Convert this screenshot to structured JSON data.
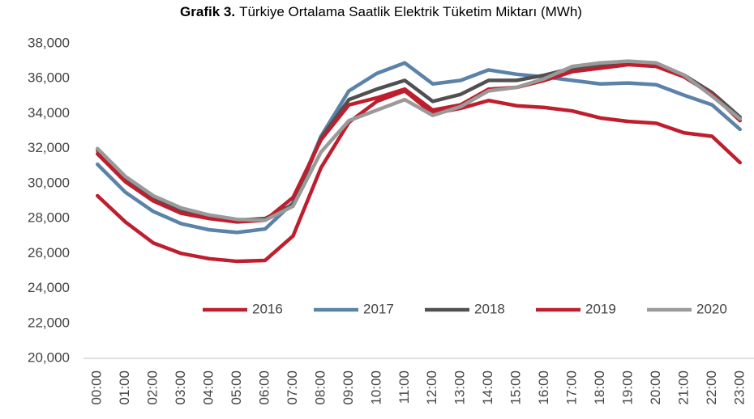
{
  "chart_data": {
    "type": "line",
    "title_bold": "Grafik 3.",
    "title": "Türkiye Ortalama Saatlik Elektrik Tüketim Miktarı (MWh)",
    "categories": [
      "00:00",
      "01:00",
      "02:00",
      "03:00",
      "04:00",
      "05:00",
      "06:00",
      "07:00",
      "08:00",
      "09:00",
      "10:00",
      "11:00",
      "12:00",
      "13:00",
      "14:00",
      "15:00",
      "16:00",
      "17:00",
      "18:00",
      "19:00",
      "20:00",
      "21:00",
      "22:00",
      "23:00"
    ],
    "series": [
      {
        "name": "2016",
        "color": "#be1e2d",
        "values": [
          29300,
          27800,
          26600,
          26000,
          25700,
          25550,
          25600,
          27000,
          30900,
          33500,
          34700,
          35300,
          34000,
          34300,
          34750,
          34450,
          34350,
          34150,
          33750,
          33550,
          33450,
          32900,
          32700,
          31200
        ]
      },
      {
        "name": "2017",
        "color": "#5b82a9",
        "values": [
          31100,
          29500,
          28400,
          27700,
          27350,
          27200,
          27400,
          28900,
          32700,
          35300,
          36300,
          36900,
          35700,
          35900,
          36500,
          36250,
          36100,
          35900,
          35700,
          35750,
          35650,
          35050,
          34500,
          33100
        ]
      },
      {
        "name": "2018",
        "color": "#505050",
        "values": [
          31900,
          30300,
          29200,
          28500,
          28150,
          27900,
          28000,
          28800,
          32600,
          34800,
          35400,
          35900,
          34700,
          35100,
          35900,
          35900,
          36200,
          36600,
          36800,
          36900,
          36800,
          36200,
          35200,
          33800
        ]
      },
      {
        "name": "2019",
        "color": "#be1e2d",
        "values": [
          31700,
          30100,
          29000,
          28300,
          28000,
          27800,
          27900,
          29200,
          32500,
          34500,
          34900,
          35400,
          34200,
          34500,
          35400,
          35500,
          35900,
          36400,
          36600,
          36800,
          36700,
          36100,
          35100,
          33600
        ]
      },
      {
        "name": "2020",
        "color": "#9a9a9a",
        "values": [
          32000,
          30400,
          29300,
          28600,
          28200,
          27950,
          27900,
          28700,
          31800,
          33600,
          34200,
          34800,
          33900,
          34400,
          35300,
          35500,
          36000,
          36700,
          36900,
          37000,
          36900,
          36200,
          35000,
          33700
        ]
      }
    ],
    "ylim": [
      20000,
      38000
    ],
    "yticks": [
      {
        "value": 20000,
        "label": "20,000"
      },
      {
        "value": 22000,
        "label": "22,000"
      },
      {
        "value": 24000,
        "label": "24,000"
      },
      {
        "value": 26000,
        "label": "26,000"
      },
      {
        "value": 28000,
        "label": "28,000"
      },
      {
        "value": 30000,
        "label": "30,000"
      },
      {
        "value": 32000,
        "label": "32,000"
      },
      {
        "value": 34000,
        "label": "34,000"
      },
      {
        "value": 36000,
        "label": "36,000"
      },
      {
        "value": 38000,
        "label": "38,000"
      }
    ],
    "grid": false
  }
}
